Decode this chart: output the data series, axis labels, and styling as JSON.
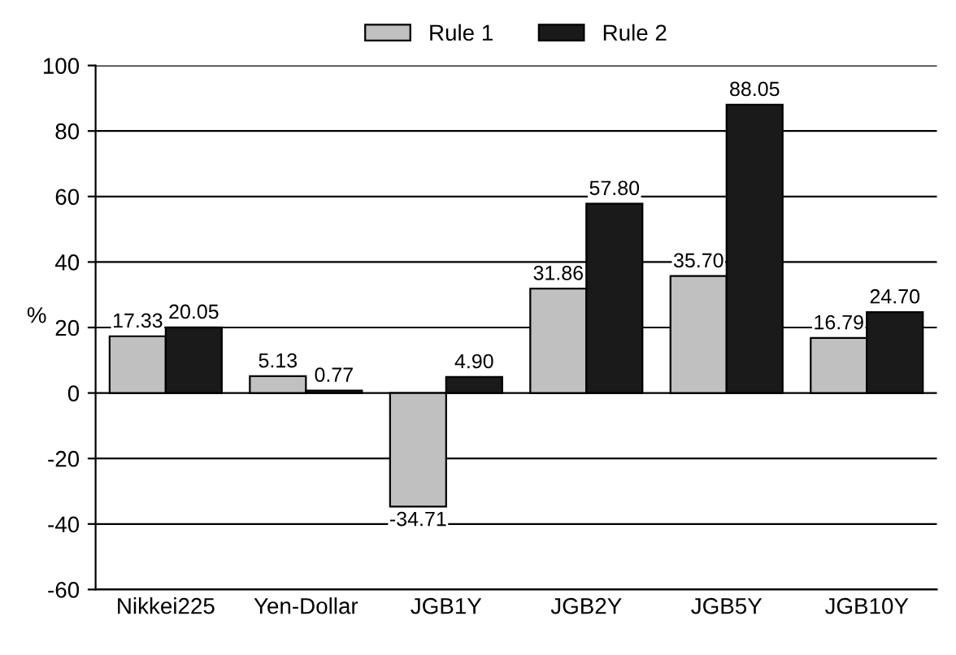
{
  "chart_data": {
    "type": "bar",
    "categories": [
      "Nikkei225",
      "Yen-Dollar",
      "JGB1Y",
      "JGB2Y",
      "JGB5Y",
      "JGB10Y"
    ],
    "series": [
      {
        "name": "Rule 1",
        "color": "#c0c0c0",
        "values": [
          17.33,
          5.13,
          -34.71,
          31.86,
          35.7,
          16.79
        ],
        "value_labels": [
          "17.33",
          "5.13",
          "-34.71",
          "31.86",
          "35.70",
          "16.79"
        ]
      },
      {
        "name": "Rule 2",
        "color": "#1a1a1a",
        "values": [
          20.05,
          0.77,
          4.9,
          57.8,
          88.05,
          24.7
        ],
        "value_labels": [
          "20.05",
          "0.77",
          "4.90",
          "57.80",
          "88.05",
          "24.70"
        ]
      }
    ],
    "ylabel": "%",
    "ylim": [
      -60,
      100
    ],
    "yticks": [
      -60,
      -40,
      -20,
      0,
      20,
      40,
      60,
      80,
      100
    ],
    "grid": "y",
    "legend": "top"
  }
}
